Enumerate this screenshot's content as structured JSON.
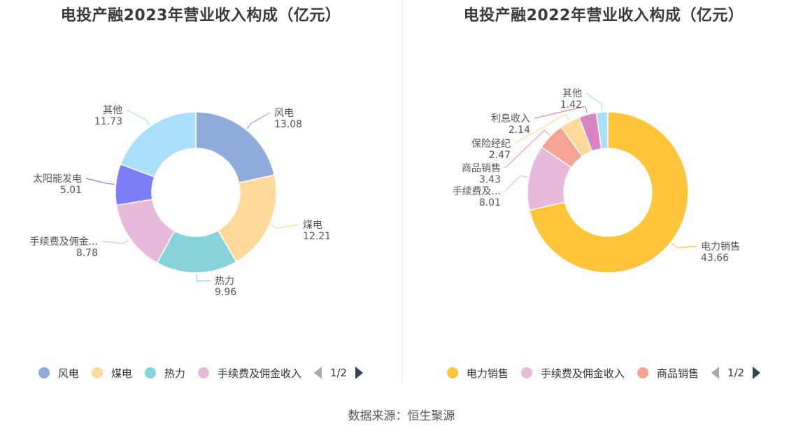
{
  "chart_data": [
    {
      "type": "pie",
      "title": "电投产融2023年营业收入构成（亿元）",
      "slices": [
        {
          "name": "风电",
          "value": 13.08,
          "color": "#8eabdc"
        },
        {
          "name": "煤电",
          "value": 12.21,
          "color": "#ffd99a"
        },
        {
          "name": "热力",
          "value": 9.96,
          "color": "#86d3d9"
        },
        {
          "name": "手续费及佣金收入",
          "label": "手续费及佣金...",
          "value": 8.78,
          "color": "#e7b9da"
        },
        {
          "name": "太阳能发电",
          "value": 5.01,
          "color": "#7b7ff5"
        },
        {
          "name": "其他",
          "value": 11.73,
          "color": "#a9dff8"
        }
      ],
      "legend": [
        "风电",
        "煤电",
        "热力",
        "手续费及佣金收入"
      ],
      "legend_page": "1/2",
      "legend_placement": "bottom"
    },
    {
      "type": "pie",
      "title": "电投产融2022年营业收入构成（亿元）",
      "slices": [
        {
          "name": "电力销售",
          "value": 43.66,
          "color": "#fec43a"
        },
        {
          "name": "手续费及佣金收入",
          "label": "手续费及...",
          "value": 8.01,
          "color": "#e7b9da"
        },
        {
          "name": "商品销售",
          "value": 3.43,
          "color": "#f6a294"
        },
        {
          "name": "保险经纪",
          "value": 2.47,
          "color": "#ffd99a"
        },
        {
          "name": "利息收入",
          "value": 2.14,
          "color": "#d985c5"
        },
        {
          "name": "其他",
          "value": 1.42,
          "color": "#a9dff8"
        }
      ],
      "legend": [
        "电力销售",
        "手续费及佣金收入",
        "商品销售"
      ],
      "legend_page": "1/2",
      "legend_placement": "bottom"
    }
  ],
  "source": "数据来源：恒生聚源"
}
